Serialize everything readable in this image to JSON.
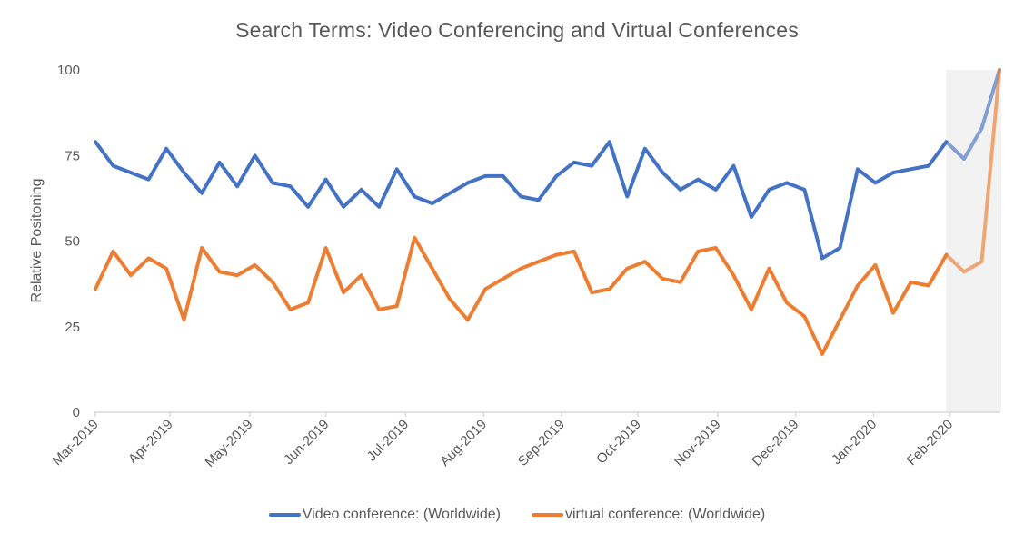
{
  "chart_data": {
    "type": "line",
    "title": "Search Terms: Video Conferencing and Virtual Conferences",
    "xlabel": "",
    "ylabel": "Relative Positoning",
    "ylim": [
      0,
      100
    ],
    "yticks": [
      0,
      25,
      50,
      75,
      100
    ],
    "grid": false,
    "legend_position": "bottom",
    "x_tick_labels": [
      "Mar-2019",
      "Apr-2019",
      "May-2019",
      "Jun-2019",
      "Jul-2019",
      "Aug-2019",
      "Sep-2019",
      "Oct-2019",
      "Nov-2019",
      "Dec-2019",
      "Jan-2020",
      "Feb-2020"
    ],
    "x_tick_indices": [
      0,
      4.2,
      8.7,
      13,
      17.5,
      21.9,
      26.3,
      30.6,
      35.1,
      39.5,
      43.9,
      48.2
    ],
    "highlight_region": {
      "start_index": 48,
      "end_index": 51,
      "color": "#f2f2f2"
    },
    "series": [
      {
        "name": "Video conference: (Worldwide)",
        "color": "#4472c4",
        "values": [
          79,
          72,
          70,
          68,
          77,
          70,
          64,
          73,
          66,
          75,
          67,
          66,
          60,
          68,
          60,
          65,
          60,
          71,
          63,
          61,
          64,
          67,
          69,
          69,
          63,
          62,
          69,
          73,
          72,
          79,
          63,
          77,
          70,
          65,
          68,
          65,
          72,
          57,
          65,
          67,
          65,
          45,
          48,
          71,
          67,
          70,
          71,
          72,
          79,
          74,
          83,
          100
        ]
      },
      {
        "name": "virtual conference: (Worldwide)",
        "color": "#ed7d31",
        "values": [
          36,
          47,
          40,
          45,
          42,
          27,
          48,
          41,
          40,
          43,
          38,
          30,
          32,
          48,
          35,
          40,
          30,
          31,
          51,
          42,
          33,
          27,
          36,
          39,
          42,
          44,
          46,
          47,
          35,
          36,
          42,
          44,
          39,
          38,
          47,
          48,
          40,
          30,
          42,
          32,
          28,
          17,
          27,
          37,
          43,
          29,
          38,
          37,
          46,
          41,
          44,
          100
        ]
      }
    ]
  },
  "legend": {
    "items": [
      {
        "label": "Video conference: (Worldwide)",
        "color": "#4472c4"
      },
      {
        "label": "virtual conference: (Worldwide)",
        "color": "#ed7d31"
      }
    ]
  }
}
